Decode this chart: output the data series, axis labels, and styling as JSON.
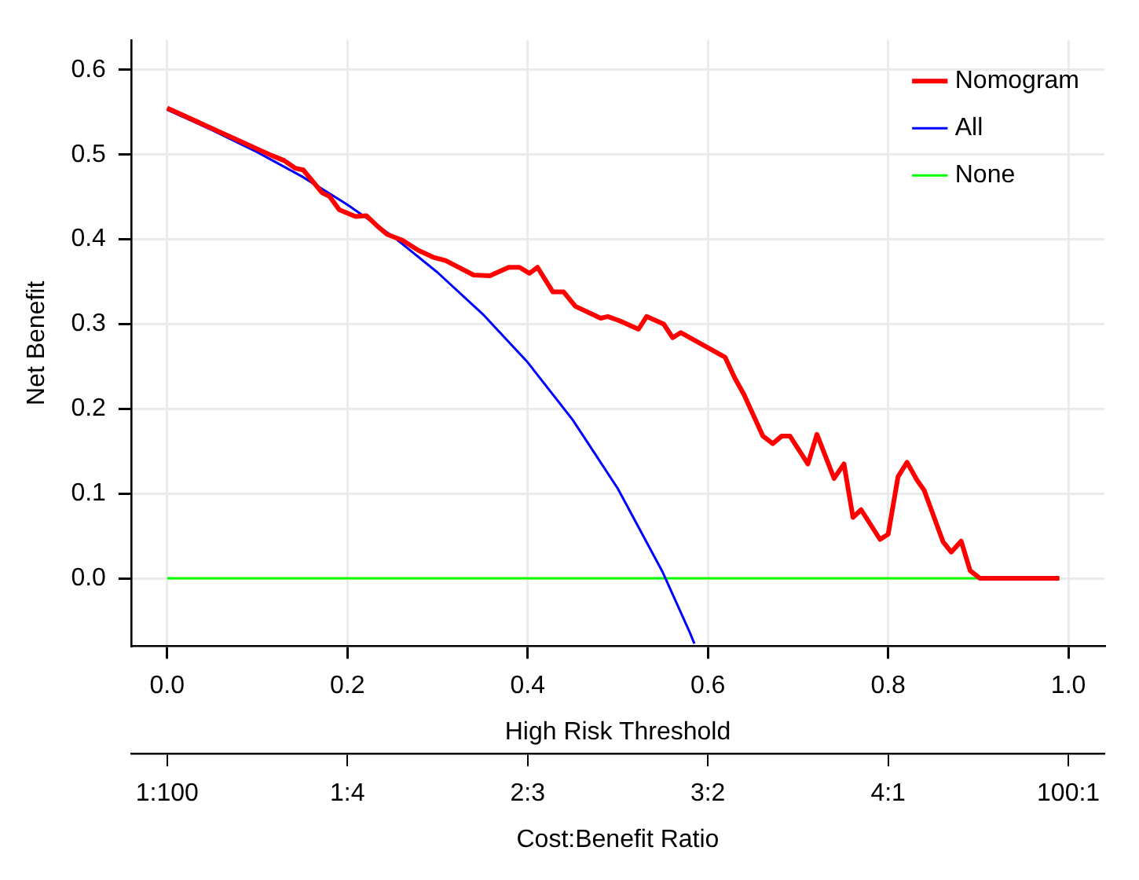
{
  "chart_data": {
    "type": "line",
    "xlabel": "High Risk Threshold",
    "ylabel": "Net Benefit",
    "x2label": "Cost:Benefit Ratio",
    "xlim": [
      -0.04,
      1.04
    ],
    "xticks": [
      {
        "value": 0,
        "label": "0.0"
      },
      0.2,
      0.4,
      0.6,
      0.8,
      {
        "value": 1,
        "label": "1.0"
      }
    ],
    "annotations": [
      "1:100",
      "1:4",
      "2:3",
      "3:2",
      "4:1",
      "100:1"
    ],
    "ylim": [
      -0.08,
      0.635
    ],
    "yticks": [
      {
        "value": 0,
        "label": "0.0"
      },
      0.1,
      0.2,
      0.3,
      0.4,
      0.5,
      0.6
    ],
    "grid": true,
    "legend": "top right",
    "marker": "none",
    "line_style": "solid",
    "series": [
      {
        "name": "Nomogram",
        "color": "#ff0000",
        "x": [
          0,
          0.116,
          0.13,
          0.142,
          0.151,
          0.172,
          0.18,
          0.191,
          0.209,
          0.221,
          0.233,
          0.244,
          0.261,
          0.279,
          0.295,
          0.309,
          0.34,
          0.358,
          0.379,
          0.391,
          0.402,
          0.411,
          0.428,
          0.44,
          0.453,
          0.481,
          0.489,
          0.502,
          0.523,
          0.532,
          0.551,
          0.561,
          0.57,
          0.619,
          0.63,
          0.64,
          0.661,
          0.672,
          0.682,
          0.691,
          0.711,
          0.721,
          0.74,
          0.751,
          0.761,
          0.77,
          0.791,
          0.8,
          0.811,
          0.821,
          0.832,
          0.84,
          0.861,
          0.87,
          0.881,
          0.891,
          0.902,
          0.99
        ],
        "values": [
          0.555,
          0.499,
          0.493,
          0.484,
          0.482,
          0.455,
          0.451,
          0.435,
          0.427,
          0.428,
          0.416,
          0.406,
          0.399,
          0.387,
          0.379,
          0.375,
          0.358,
          0.357,
          0.367,
          0.367,
          0.36,
          0.367,
          0.338,
          0.338,
          0.321,
          0.307,
          0.309,
          0.304,
          0.294,
          0.309,
          0.3,
          0.284,
          0.29,
          0.261,
          0.236,
          0.217,
          0.168,
          0.159,
          0.168,
          0.168,
          0.135,
          0.17,
          0.118,
          0.135,
          0.072,
          0.081,
          0.046,
          0.052,
          0.12,
          0.137,
          0.116,
          0.104,
          0.043,
          0.031,
          0.044,
          0.009,
          0,
          0
        ]
      },
      {
        "name": "All",
        "color": "#0000ff",
        "x": [
          0,
          0.05,
          0.1,
          0.15,
          0.2,
          0.25,
          0.3,
          0.35,
          0.4,
          0.45,
          0.5,
          0.55,
          0.58,
          0.585
        ],
        "values": [
          0.553,
          0.529,
          0.503,
          0.474,
          0.441,
          0.404,
          0.361,
          0.312,
          0.255,
          0.187,
          0.106,
          0.007,
          -0.064,
          -0.077
        ]
      },
      {
        "name": "None",
        "color": "#00ff00",
        "x": [
          0,
          0.99
        ],
        "values": [
          0,
          0
        ]
      }
    ]
  }
}
